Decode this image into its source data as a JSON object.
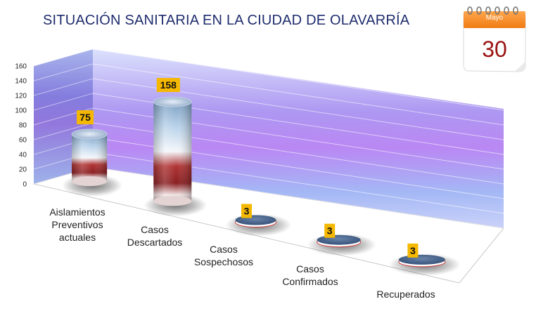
{
  "calendar": {
    "month": "Mayo",
    "day": "30"
  },
  "chart_data": {
    "type": "bar",
    "title": "SITUACIÓN SANITARIA EN LA CIUDAD  DE OLAVARRÍA",
    "categories": [
      "Aislamientos Preventivos actuales",
      "Casos Descartados",
      "Casos Sospechosos",
      "Casos Confirmados",
      "Recuperados"
    ],
    "category_lines": [
      [
        "Aislamientos",
        "Preventivos",
        "actuales"
      ],
      [
        "Casos",
        "Descartados"
      ],
      [
        "Casos",
        "Sospechosos"
      ],
      [
        "Casos",
        "Confirmados"
      ],
      [
        "Recuperados"
      ]
    ],
    "values": [
      75,
      158,
      3,
      3,
      3
    ],
    "ylim": [
      0,
      160
    ],
    "yticks": [
      0,
      20,
      40,
      60,
      80,
      100,
      120,
      140,
      160
    ],
    "style": "3d-cylinder",
    "grid": true,
    "label_color": "#f5b800"
  }
}
